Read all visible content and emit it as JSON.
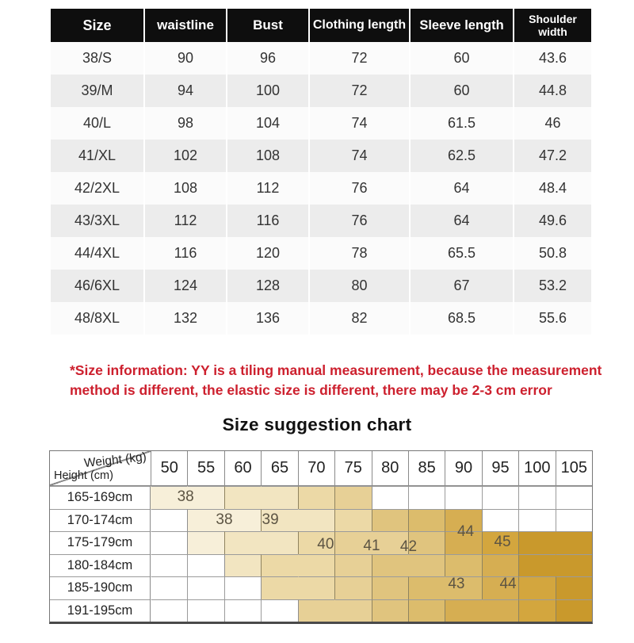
{
  "note": {
    "color": "#cd202e",
    "lines": [
      "*Size information: YY is a tiling manual measurement, because the measurement",
      "method is different, the elastic size is different, there may be 2-3 cm error"
    ]
  },
  "chart_data": [
    {
      "type": "table",
      "title": "Garment measurements (cm)",
      "headers": [
        "Size",
        "waistline",
        "Bust",
        "Clothing length",
        "Sleeve length",
        "Shoulder width"
      ],
      "rows": [
        [
          "38/S",
          "90",
          "96",
          "72",
          "60",
          "43.6"
        ],
        [
          "39/M",
          "94",
          "100",
          "72",
          "60",
          "44.8"
        ],
        [
          "40/L",
          "98",
          "104",
          "74",
          "61.5",
          "46"
        ],
        [
          "41/XL",
          "102",
          "108",
          "74",
          "62.5",
          "47.2"
        ],
        [
          "42/2XL",
          "108",
          "112",
          "76",
          "64",
          "48.4"
        ],
        [
          "43/3XL",
          "112",
          "116",
          "76",
          "64",
          "49.6"
        ],
        [
          "44/4XL",
          "116",
          "120",
          "78",
          "65.5",
          "50.8"
        ],
        [
          "46/6XL",
          "124",
          "128",
          "80",
          "67",
          "53.2"
        ],
        [
          "48/8XL",
          "132",
          "136",
          "82",
          "68.5",
          "55.6"
        ]
      ],
      "header_bg": "#0e0e0e",
      "header_fg": "#ffffff",
      "row_alt_bg": "#ececec"
    },
    {
      "type": "heatmap",
      "title": "Size suggestion chart",
      "corner_top": "Weight (kg)",
      "corner_bottom": "Height (cm)",
      "weights": [
        "50",
        "55",
        "60",
        "65",
        "70",
        "75",
        "80",
        "85",
        "90",
        "95",
        "100",
        "105"
      ],
      "heights": [
        "165-169cm",
        "170-174cm",
        "175-179cm",
        "180-184cm",
        "185-190cm",
        "191-195cm"
      ],
      "matrix": [
        [
          38,
          38,
          39,
          39,
          40,
          41,
          0,
          0,
          0,
          0,
          0,
          0
        ],
        [
          0,
          38,
          38,
          39,
          39,
          40,
          42,
          43,
          44,
          0,
          0,
          0
        ],
        [
          0,
          38,
          39,
          39,
          40,
          41,
          41,
          42,
          44,
          45,
          46,
          46
        ],
        [
          0,
          0,
          39,
          40,
          40,
          41,
          42,
          42,
          43,
          44,
          46,
          46
        ],
        [
          0,
          0,
          0,
          40,
          40,
          41,
          42,
          43,
          43,
          44,
          45,
          46
        ],
        [
          0,
          0,
          0,
          0,
          41,
          41,
          42,
          43,
          44,
          44,
          45,
          46
        ]
      ],
      "band_colors": {
        "38": "#f7efd9",
        "39": "#f2e5c1",
        "40": "#ecd9a6",
        "41": "#e7d096",
        "42": "#e0c47e",
        "43": "#dcbc6c",
        "44": "#d6ae52",
        "45": "#d3a63e",
        "46": "#c9992c"
      },
      "labels": [
        {
          "text": "38",
          "col": 0.95,
          "row": 0.5
        },
        {
          "text": "38",
          "col": 2.0,
          "row": 1.5
        },
        {
          "text": "39",
          "col": 3.25,
          "row": 1.5
        },
        {
          "text": "40",
          "col": 4.75,
          "row": 2.6
        },
        {
          "text": "41",
          "col": 6.0,
          "row": 2.65
        },
        {
          "text": "42",
          "col": 7.0,
          "row": 2.7
        },
        {
          "text": "44",
          "col": 8.55,
          "row": 2.05
        },
        {
          "text": "45",
          "col": 9.55,
          "row": 2.5
        },
        {
          "text": "43",
          "col": 8.3,
          "row": 4.35
        },
        {
          "text": "44",
          "col": 9.7,
          "row": 4.35
        }
      ]
    }
  ]
}
